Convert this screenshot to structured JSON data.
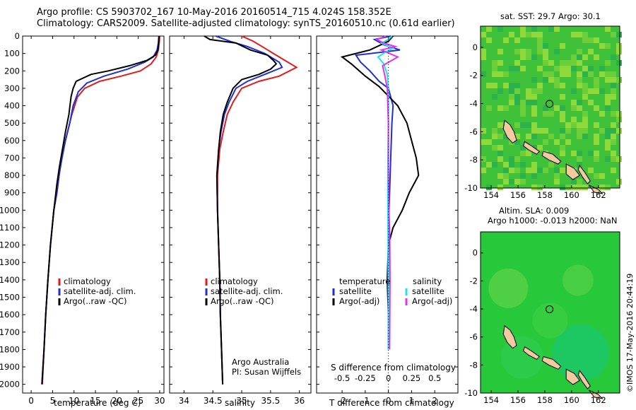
{
  "header": {
    "line1": "Argo profile: CS 5903702_167 10-May-2016 20160514_715 4.024S 158.352E",
    "line2": "Climatology: CARS2009. Satellite-adjusted climatology: synTS_20160510.nc (0.61d earlier)"
  },
  "colors": {
    "climatology": "#e41a1c",
    "satellite": "#1f2fd6",
    "argo": "#000000",
    "satellite_s": "#19e6f0",
    "argo_s": "#e433e8",
    "land": "#f3c9a0",
    "sea": "#27c93a"
  },
  "chart_data": [
    {
      "id": "temperature",
      "type": "line",
      "xlabel": "temperature (deg C)",
      "ylabel": "",
      "xlim": [
        -2,
        31
      ],
      "ylim": [
        2050,
        0
      ],
      "xticks": [
        0,
        5,
        10,
        15,
        20,
        25,
        30
      ],
      "yticks": [
        0,
        100,
        200,
        300,
        400,
        500,
        600,
        700,
        800,
        900,
        1000,
        1100,
        1200,
        1300,
        1400,
        1500,
        1600,
        1700,
        1800,
        1900,
        2000
      ],
      "legend": [
        "climatology",
        "satellite-adj. clim.",
        "Argo(..raw -QC)"
      ],
      "series": [
        {
          "name": "climatology",
          "color_key": "climatology",
          "points": [
            [
              30.0,
              0
            ],
            [
              29.9,
              40
            ],
            [
              29.7,
              80
            ],
            [
              29.2,
              120
            ],
            [
              28.0,
              160
            ],
            [
              25.5,
              200
            ],
            [
              21.0,
              230
            ],
            [
              16.0,
              260
            ],
            [
              12.5,
              300
            ],
            [
              10.8,
              350
            ],
            [
              9.5,
              450
            ],
            [
              8.5,
              550
            ],
            [
              7.5,
              650
            ],
            [
              6.8,
              750
            ],
            [
              6.0,
              900
            ],
            [
              5.3,
              1000
            ],
            [
              4.5,
              1200
            ],
            [
              3.9,
              1400
            ],
            [
              3.4,
              1600
            ],
            [
              3.0,
              1800
            ],
            [
              2.6,
              2000
            ]
          ]
        },
        {
          "name": "satellite-adj. clim.",
          "color_key": "satellite",
          "points": [
            [
              29.8,
              0
            ],
            [
              29.7,
              40
            ],
            [
              29.4,
              80
            ],
            [
              28.5,
              120
            ],
            [
              26.5,
              150
            ],
            [
              22.5,
              190
            ],
            [
              17.0,
              230
            ],
            [
              13.0,
              270
            ],
            [
              11.0,
              320
            ],
            [
              9.8,
              400
            ],
            [
              9.0,
              500
            ],
            [
              8.0,
              600
            ],
            [
              7.2,
              700
            ],
            [
              6.5,
              800
            ],
            [
              6.0,
              900
            ],
            [
              5.3,
              1000
            ],
            [
              4.5,
              1200
            ],
            [
              3.9,
              1400
            ],
            [
              3.4,
              1600
            ],
            [
              3.0,
              1800
            ],
            [
              2.5,
              2000
            ]
          ]
        },
        {
          "name": "Argo(..raw -QC)",
          "color_key": "argo",
          "points": [
            [
              29.9,
              0
            ],
            [
              29.8,
              30
            ],
            [
              29.6,
              80
            ],
            [
              29.0,
              110
            ],
            [
              27.0,
              140
            ],
            [
              23.0,
              170
            ],
            [
              18.0,
              200
            ],
            [
              14.0,
              220
            ],
            [
              10.5,
              260
            ],
            [
              9.8,
              300
            ],
            [
              9.3,
              350
            ],
            [
              8.8,
              450
            ],
            [
              8.0,
              550
            ],
            [
              7.3,
              650
            ],
            [
              6.6,
              750
            ],
            [
              6.0,
              850
            ],
            [
              5.3,
              1000
            ],
            [
              4.5,
              1200
            ],
            [
              3.9,
              1400
            ],
            [
              3.4,
              1600
            ],
            [
              3.0,
              1800
            ],
            [
              2.5,
              2000
            ]
          ]
        }
      ]
    },
    {
      "id": "salinity",
      "type": "line",
      "xlabel": "salinity",
      "xlim": [
        33.75,
        36.2
      ],
      "ylim": [
        2050,
        0
      ],
      "xticks": [
        34,
        34.5,
        35,
        35.5,
        36
      ],
      "xticklabels": [
        "34",
        "34.5",
        "35",
        "35.5",
        "36"
      ],
      "legend": [
        "climatology",
        "satellite-adj. clim.",
        "Argo(..raw -QC)"
      ],
      "annotation": [
        "Argo Australia",
        "PI: Susan Wijffels"
      ],
      "series": [
        {
          "name": "climatology",
          "color_key": "climatology",
          "points": [
            [
              35.0,
              0
            ],
            [
              35.2,
              30
            ],
            [
              35.4,
              70
            ],
            [
              35.65,
              120
            ],
            [
              35.95,
              180
            ],
            [
              35.65,
              230
            ],
            [
              35.3,
              260
            ],
            [
              35.0,
              300
            ],
            [
              34.85,
              380
            ],
            [
              34.75,
              450
            ],
            [
              34.68,
              550
            ],
            [
              34.62,
              650
            ],
            [
              34.58,
              800
            ],
            [
              34.58,
              1000
            ],
            [
              34.6,
              1200
            ],
            [
              34.62,
              1400
            ],
            [
              34.63,
              1600
            ],
            [
              34.65,
              1800
            ],
            [
              34.67,
              2000
            ]
          ]
        },
        {
          "name": "satellite-adj. clim.",
          "color_key": "satellite",
          "points": [
            [
              34.55,
              0
            ],
            [
              34.8,
              30
            ],
            [
              35.1,
              60
            ],
            [
              35.4,
              100
            ],
            [
              35.65,
              150
            ],
            [
              35.7,
              180
            ],
            [
              35.4,
              220
            ],
            [
              35.1,
              260
            ],
            [
              34.9,
              300
            ],
            [
              34.78,
              380
            ],
            [
              34.7,
              450
            ],
            [
              34.64,
              550
            ],
            [
              34.6,
              650
            ],
            [
              34.57,
              800
            ],
            [
              34.58,
              1000
            ],
            [
              34.6,
              1200
            ],
            [
              34.62,
              1400
            ],
            [
              34.63,
              1600
            ],
            [
              34.65,
              1800
            ],
            [
              34.67,
              2000
            ]
          ]
        },
        {
          "name": "Argo(..raw -QC)",
          "color_key": "argo",
          "points": [
            [
              34.35,
              0
            ],
            [
              34.45,
              20
            ],
            [
              34.9,
              40
            ],
            [
              35.15,
              80
            ],
            [
              35.45,
              110
            ],
            [
              35.55,
              140
            ],
            [
              35.6,
              160
            ],
            [
              35.5,
              190
            ],
            [
              35.3,
              220
            ],
            [
              35.0,
              250
            ],
            [
              34.85,
              300
            ],
            [
              34.75,
              380
            ],
            [
              34.68,
              450
            ],
            [
              34.63,
              550
            ],
            [
              34.6,
              650
            ],
            [
              34.57,
              800
            ],
            [
              34.58,
              1000
            ],
            [
              34.6,
              1200
            ],
            [
              34.62,
              1400
            ],
            [
              34.63,
              1600
            ],
            [
              34.65,
              1800
            ],
            [
              34.67,
              2000
            ]
          ]
        }
      ]
    },
    {
      "id": "difference",
      "type": "line",
      "xlabel": "T difference from climatology",
      "top_xlabel": "S difference from climatology",
      "xlim": [
        -3.1,
        3.0
      ],
      "ylim": [
        2050,
        0
      ],
      "xticks": [
        -2,
        -1,
        0,
        1,
        2
      ],
      "xticklabels": [
        "-2",
        "-1",
        "0",
        "1",
        "2"
      ],
      "s_ticks": [
        -0.5,
        -0.25,
        0,
        0.25,
        0.5
      ],
      "s_ticklabels": [
        "-0.5",
        "-0.25",
        "0",
        "0.25",
        "0.5"
      ],
      "legend_headers": [
        "temperature",
        "salinity"
      ],
      "legend_temperature": [
        "satellite",
        "Argo(-adj)"
      ],
      "legend_salinity": [
        "satellite",
        "Argo(-adj)"
      ],
      "series": [
        {
          "name": "T satellite",
          "color_key": "satellite",
          "points": [
            [
              0.1,
              0
            ],
            [
              -0.6,
              20
            ],
            [
              -0.2,
              50
            ],
            [
              0.5,
              80
            ],
            [
              -1.4,
              110
            ],
            [
              -1.2,
              150
            ],
            [
              -0.8,
              200
            ],
            [
              -0.4,
              260
            ],
            [
              0.0,
              300
            ],
            [
              0.2,
              400
            ],
            [
              0.15,
              500
            ],
            [
              0.1,
              700
            ],
            [
              0.05,
              900
            ],
            [
              0.0,
              1100
            ],
            [
              0.0,
              1400
            ],
            [
              0.0,
              1800
            ]
          ]
        },
        {
          "name": "T Argo(-adj)",
          "color_key": "argo",
          "points": [
            [
              0.2,
              0
            ],
            [
              0.0,
              30
            ],
            [
              -0.8,
              80
            ],
            [
              -2.0,
              120
            ],
            [
              -1.6,
              160
            ],
            [
              -1.0,
              230
            ],
            [
              -0.4,
              290
            ],
            [
              0.4,
              400
            ],
            [
              0.8,
              500
            ],
            [
              1.0,
              600
            ],
            [
              1.2,
              700
            ],
            [
              1.3,
              800
            ],
            [
              0.9,
              900
            ],
            [
              0.6,
              1000
            ],
            [
              0.2,
              1100
            ],
            [
              0.0,
              1200
            ],
            [
              -0.05,
              1400
            ],
            [
              0.0,
              1600
            ],
            [
              0.0,
              1800
            ]
          ]
        },
        {
          "name": "S satellite",
          "color_key": "satellite_s",
          "points": [
            [
              0.15,
              0
            ],
            [
              0.0,
              20
            ],
            [
              -0.3,
              40
            ],
            [
              0.2,
              70
            ],
            [
              -0.1,
              90
            ],
            [
              -0.45,
              120
            ],
            [
              -0.2,
              160
            ],
            [
              -0.05,
              220
            ],
            [
              0.0,
              300
            ],
            [
              0.0,
              500
            ],
            [
              -0.02,
              700
            ],
            [
              -0.03,
              900
            ],
            [
              -0.02,
              1100
            ],
            [
              0.0,
              1500
            ],
            [
              0.0,
              1800
            ]
          ]
        },
        {
          "name": "S Argo(-adj)",
          "color_key": "argo_s",
          "points": [
            [
              -0.1,
              0
            ],
            [
              -0.5,
              20
            ],
            [
              -0.2,
              40
            ],
            [
              0.3,
              60
            ],
            [
              -0.3,
              80
            ],
            [
              0.4,
              120
            ],
            [
              -0.25,
              170
            ],
            [
              -0.15,
              230
            ],
            [
              -0.05,
              300
            ],
            [
              0.0,
              500
            ],
            [
              0.0,
              800
            ],
            [
              0.02,
              1000
            ],
            [
              0.05,
              1100
            ],
            [
              0.06,
              1200
            ],
            [
              0.07,
              1400
            ],
            [
              0.06,
              1600
            ],
            [
              0.05,
              1800
            ]
          ]
        }
      ]
    },
    {
      "id": "sst_map",
      "type": "heatmap",
      "title": "sat. SST: 29.7  Argo: 30.1",
      "xlim": [
        153.2,
        163.6
      ],
      "ylim": [
        -10,
        1.5
      ],
      "xticks": [
        154,
        156,
        158,
        160,
        162
      ],
      "yticks": [
        0,
        -2,
        -4,
        -6,
        -8,
        -10
      ],
      "argo_position": [
        158.35,
        -4.02
      ]
    },
    {
      "id": "sla_map",
      "type": "heatmap",
      "title": [
        "Altim. SLA: 0.009",
        "Argo h1000: -0.013  h2000: NaN"
      ],
      "xlim": [
        153.2,
        163.6
      ],
      "ylim": [
        -10,
        1.5
      ],
      "xticks": [
        154,
        156,
        158,
        160,
        162
      ],
      "yticks": [
        0,
        -2,
        -4,
        -6,
        -8,
        -10
      ],
      "argo_position": [
        158.35,
        -4.02
      ]
    }
  ],
  "footer": {
    "stamp": "©IMOS 17-May-2016 20:44:19"
  }
}
